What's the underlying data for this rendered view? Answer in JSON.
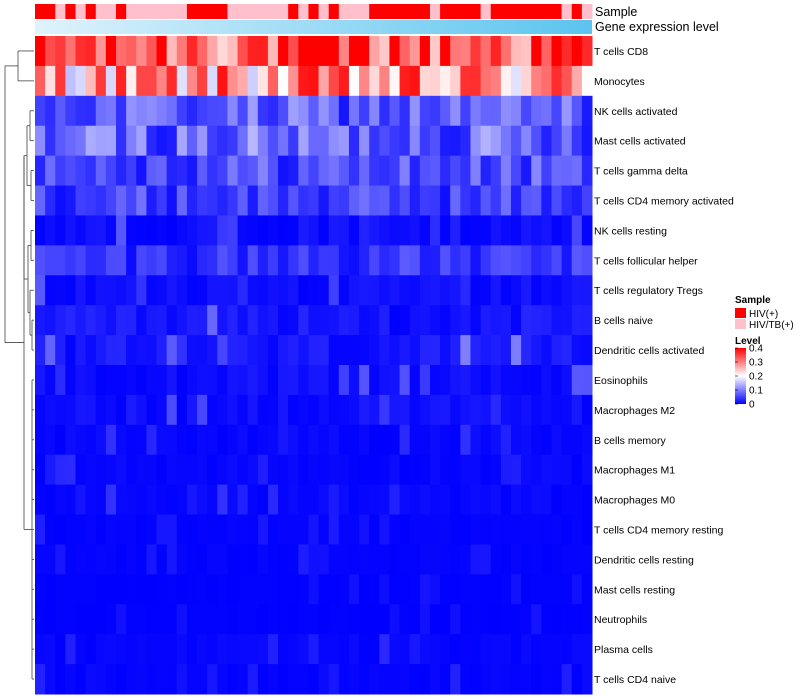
{
  "chart_data": {
    "type": "heatmap",
    "title": "",
    "annotation_tracks": [
      {
        "label": "Sample"
      },
      {
        "label": "Gene expression level"
      }
    ],
    "sample_groups": [
      "HIV(+)",
      "HIV(+)",
      "HIV/TB(+)",
      "HIV(+)",
      "HIV/TB(+)",
      "HIV(+)",
      "HIV/TB(+)",
      "HIV/TB(+)",
      "HIV(+)",
      "HIV/TB(+)",
      "HIV/TB(+)",
      "HIV/TB(+)",
      "HIV/TB(+)",
      "HIV/TB(+)",
      "HIV/TB(+)",
      "HIV(+)",
      "HIV(+)",
      "HIV(+)",
      "HIV(+)",
      "HIV/TB(+)",
      "HIV/TB(+)",
      "HIV/TB(+)",
      "HIV/TB(+)",
      "HIV/TB(+)",
      "HIV/TB(+)",
      "HIV(+)",
      "HIV/TB(+)",
      "HIV(+)",
      "HIV/TB(+)",
      "HIV(+)",
      "HIV/TB(+)",
      "HIV/TB(+)",
      "HIV/TB(+)",
      "HIV(+)",
      "HIV(+)",
      "HIV(+)",
      "HIV(+)",
      "HIV(+)",
      "HIV(+)",
      "HIV/TB(+)",
      "HIV(+)",
      "HIV(+)",
      "HIV(+)",
      "HIV(+)",
      "HIV/TB(+)",
      "HIV(+)",
      "HIV(+)",
      "HIV(+)",
      "HIV(+)",
      "HIV(+)",
      "HIV(+)",
      "HIV(+)",
      "HIV/TB(+)",
      "HIV(+)",
      "HIV/TB(+)"
    ],
    "gene_expression_track": "low-to-high gradient (light blue to sky blue)",
    "rows": [
      "T cells CD8",
      "Monocytes",
      "NK cells activated",
      "Mast cells activated",
      "T cells gamma delta",
      "T cells CD4 memory activated",
      "NK cells resting",
      "T cells follicular helper",
      "T cells regulatory  Tregs",
      "B cells naive",
      "Dendritic cells activated",
      "Eosinophils",
      "Macrophages M2",
      "B cells memory",
      "Macrophages M1",
      "Macrophages M0",
      "T cells CD4 memory resting",
      "Dendritic cells resting",
      "Mast cells resting",
      "Neutrophils",
      "Plasma cells",
      "T cells CD4 naive"
    ],
    "row_typical_levels": [
      0.34,
      0.27,
      0.07,
      0.08,
      0.06,
      0.05,
      0.02,
      0.04,
      0.02,
      0.03,
      0.03,
      0.02,
      0.02,
      0.01,
      0.01,
      0.01,
      0.005,
      0.005,
      0.002,
      0.002,
      0.008,
      0.008
    ],
    "n_samples": 55,
    "color_scale": {
      "min": 0,
      "max": 0.4,
      "colors": [
        "#0000FF",
        "#FFFFFF",
        "#FF0000"
      ],
      "ticks": [
        "0",
        "0.1",
        "0.2",
        "0.3",
        "0.4"
      ]
    },
    "legend": {
      "sample_title": "Sample",
      "sample_items": [
        {
          "label": "HIV(+)",
          "color": "#FF0000"
        },
        {
          "label": "HIV/TB(+)",
          "color": "#FFC0CB"
        }
      ],
      "level_title": "Level",
      "position": "right"
    },
    "row_dendrogram": "left"
  }
}
